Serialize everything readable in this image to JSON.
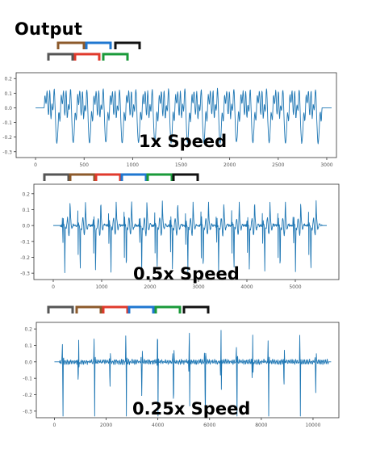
{
  "title": "Output",
  "colors": {
    "line": "#1f77b4",
    "axis": "#333333",
    "tick_text": "#555555"
  },
  "chart_data": [
    {
      "type": "line",
      "label": "1x Speed",
      "xlim": [
        -200,
        3100
      ],
      "ylim": [
        -0.34,
        0.24
      ],
      "xticks": [
        0,
        500,
        1000,
        1500,
        2000,
        2500,
        3000
      ],
      "yticks": [
        0.2,
        0.1,
        0.0,
        -0.1,
        -0.2,
        -0.3
      ],
      "ytick_labels": [
        "0.2",
        "0.1",
        "0.0",
        "-0.1",
        "-0.2",
        "-0.3"
      ],
      "signal": {
        "x_start": 0,
        "x_end": 3050,
        "active_start": 90,
        "active_end": 2950,
        "cycles": 17,
        "peak": 0.2,
        "trough": -0.32,
        "style": "dense"
      },
      "brackets": [
        {
          "row": 0,
          "color": "#8c5a2b"
        },
        {
          "row": 0,
          "color": "#1f77d0"
        },
        {
          "row": 0,
          "color": "#111111"
        },
        {
          "row": 1,
          "color": "#555555"
        },
        {
          "row": 1,
          "color": "#e03a2c"
        },
        {
          "row": 1,
          "color": "#1a9a3a"
        }
      ]
    },
    {
      "type": "line",
      "label": "0.5x Speed",
      "xlim": [
        -400,
        5900
      ],
      "ylim": [
        -0.34,
        0.26
      ],
      "xticks": [
        0,
        1000,
        2000,
        3000,
        4000,
        5000
      ],
      "yticks": [
        0.2,
        0.1,
        0.0,
        -0.1,
        -0.2,
        -0.3
      ],
      "ytick_labels": [
        "0.2",
        "0.1",
        "0.0",
        "-0.1",
        "-0.2",
        "-0.3"
      ],
      "signal": {
        "x_start": 0,
        "x_end": 5650,
        "active_start": 150,
        "active_end": 5550,
        "cycles": 17,
        "peak": 0.22,
        "trough": -0.33,
        "style": "medium"
      },
      "brackets": [
        {
          "row": 0,
          "color": "#555555"
        },
        {
          "row": 0,
          "color": "#8c5a2b"
        },
        {
          "row": 0,
          "color": "#e03a2c"
        },
        {
          "row": 0,
          "color": "#1f77d0"
        },
        {
          "row": 0,
          "color": "#1a9a3a"
        },
        {
          "row": 0,
          "color": "#111111"
        }
      ]
    },
    {
      "type": "line",
      "label": "0.25x Speed",
      "xlim": [
        -700,
        11000
      ],
      "ylim": [
        -0.34,
        0.24
      ],
      "xticks": [
        0,
        2000,
        4000,
        6000,
        8000,
        10000
      ],
      "yticks": [
        0.2,
        0.1,
        0.0,
        -0.1,
        -0.2,
        -0.3
      ],
      "ytick_labels": [
        "0.2",
        "0.1",
        "0.0",
        "-0.1",
        "-0.2",
        "-0.3"
      ],
      "signal": {
        "x_start": 0,
        "x_end": 10700,
        "active_start": 200,
        "active_end": 10600,
        "cycles": 17,
        "peak": 0.2,
        "trough": -0.33,
        "style": "sparse"
      },
      "brackets": [
        {
          "row": 0,
          "color": "#555555"
        },
        {
          "row": 0,
          "color": "#8c5a2b"
        },
        {
          "row": 0,
          "color": "#e03a2c"
        },
        {
          "row": 0,
          "color": "#1f77d0"
        },
        {
          "row": 0,
          "color": "#1a9a3a"
        },
        {
          "row": 0,
          "color": "#111111"
        }
      ]
    }
  ]
}
